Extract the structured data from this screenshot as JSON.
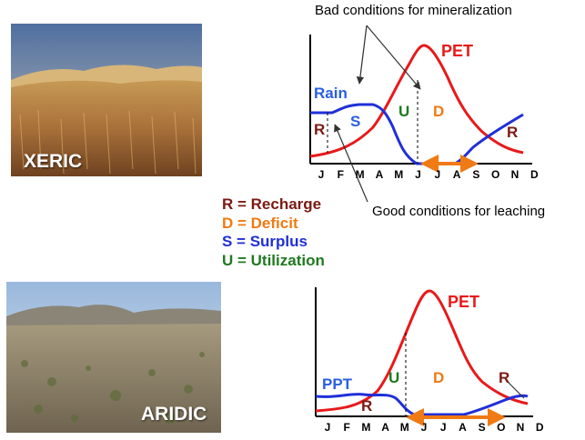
{
  "photos": {
    "xeric": {
      "label": "XERIC"
    },
    "aridic": {
      "label": "ARIDIC"
    }
  },
  "annotations": {
    "mineralization": "Bad conditions for mineralization",
    "leaching": "Good conditions for leaching"
  },
  "legend": [
    {
      "text": "R = Recharge",
      "color": "#7b1a12"
    },
    {
      "text": "D = Deficit",
      "color": "#f07a14"
    },
    {
      "text": "S = Surplus",
      "color": "#1f2fd8"
    },
    {
      "text": "U = Utilization",
      "color": "#1f7a1f"
    }
  ],
  "months": [
    "J",
    "F",
    "M",
    "A",
    "M",
    "J",
    "J",
    "A",
    "S",
    "O",
    "N",
    "D"
  ],
  "colors": {
    "pet": "#e8191a",
    "precip": "#1f2fd8",
    "recharge": "#7b1a12",
    "deficit": "#f07a14",
    "utilization": "#1f7a1f",
    "surplus": "#2a5fe0",
    "arrow": "#f07a14"
  },
  "graphs": {
    "top": {
      "pet_label": "PET",
      "precip_label": "Rain",
      "zone_labels": {
        "recharge": "R",
        "surplus": "S",
        "utilization": "U",
        "deficit": "D",
        "recharge_end": "R"
      }
    },
    "bottom": {
      "pet_label": "PET",
      "precip_label": "PPT",
      "zone_labels": {
        "recharge": "R",
        "utilization": "U",
        "deficit": "D",
        "recharge_end": "R"
      }
    }
  }
}
